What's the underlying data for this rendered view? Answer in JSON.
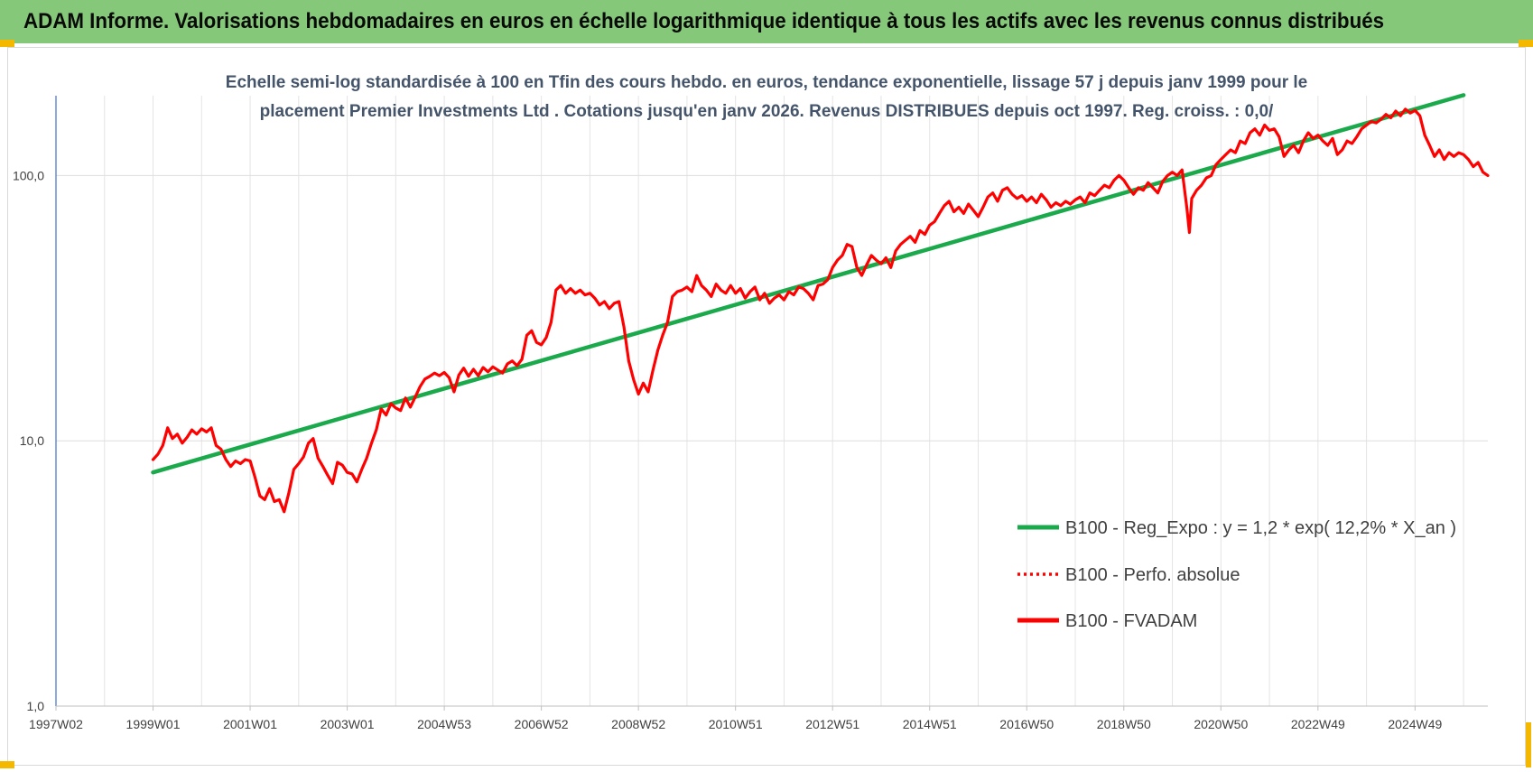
{
  "header": {
    "title": "ADAM Informe. Valorisations hebdomadaires en euros en échelle logarithmique identique à tous les actifs avec les revenus connus distribués"
  },
  "chart_data": {
    "type": "line",
    "subtitle_lines": [
      "Echelle semi-log standardisée à 100 en Tfin des cours hebdo. en euros, tendance exponentielle, lissage 57 j depuis janv 1999 pour le",
      "placement Premier Investments Ltd . Cotations jusqu'en janv 2026. Revenus DISTRIBUES depuis oct 1997. Reg. croiss. : 0,0/"
    ],
    "y_scale": "log",
    "ylim": [
      1,
      200
    ],
    "y_ticks": [
      {
        "value": 1,
        "label": "1,0"
      },
      {
        "value": 10,
        "label": "10,0"
      },
      {
        "value": 100,
        "label": "100,0"
      }
    ],
    "xlim": [
      1997.0,
      2026.0
    ],
    "x_ticks": [
      {
        "value": 1997.0,
        "label": "1997W02"
      },
      {
        "value": 1999.0,
        "label": "1999W01"
      },
      {
        "value": 2001.0,
        "label": "2001W01"
      },
      {
        "value": 2003.0,
        "label": "2003W01"
      },
      {
        "value": 2005.0,
        "label": "2004W53"
      },
      {
        "value": 2007.0,
        "label": "2006W52"
      },
      {
        "value": 2009.0,
        "label": "2008W52"
      },
      {
        "value": 2011.0,
        "label": "2010W51"
      },
      {
        "value": 2013.0,
        "label": "2012W51"
      },
      {
        "value": 2015.0,
        "label": "2014W51"
      },
      {
        "value": 2017.0,
        "label": "2016W50"
      },
      {
        "value": 2019.0,
        "label": "2018W50"
      },
      {
        "value": 2021.0,
        "label": "2020W50"
      },
      {
        "value": 2023.0,
        "label": "2022W49"
      },
      {
        "value": 2025.0,
        "label": "2024W49"
      }
    ],
    "grid": true,
    "legend_position": "right-middle",
    "series": [
      {
        "name": "B100 - Reg_Expo : y = 1,2 * exp( 12,2% *  X_an )",
        "color": "#1aaa4b",
        "style": "solid",
        "points": [
          [
            1999.0,
            7.6
          ],
          [
            2026.0,
            201.0
          ]
        ]
      },
      {
        "name": "B100 - Perfo. absolue",
        "color": "#ff0000",
        "style": "dotted",
        "points": []
      },
      {
        "name": "B100 - FVADAM",
        "color": "#ff0000",
        "style": "solid",
        "points": [
          [
            1999.0,
            8.5
          ],
          [
            1999.1,
            8.9
          ],
          [
            1999.2,
            9.6
          ],
          [
            1999.3,
            11.2
          ],
          [
            1999.4,
            10.2
          ],
          [
            1999.5,
            10.6
          ],
          [
            1999.6,
            9.8
          ],
          [
            1999.7,
            10.3
          ],
          [
            1999.8,
            11.0
          ],
          [
            1999.9,
            10.6
          ],
          [
            2000.0,
            11.1
          ],
          [
            2000.1,
            10.8
          ],
          [
            2000.2,
            11.2
          ],
          [
            2000.3,
            9.6
          ],
          [
            2000.4,
            9.3
          ],
          [
            2000.5,
            8.5
          ],
          [
            2000.6,
            8.0
          ],
          [
            2000.7,
            8.4
          ],
          [
            2000.8,
            8.2
          ],
          [
            2000.9,
            8.5
          ],
          [
            2001.0,
            8.4
          ],
          [
            2001.1,
            7.3
          ],
          [
            2001.2,
            6.2
          ],
          [
            2001.3,
            6.0
          ],
          [
            2001.4,
            6.6
          ],
          [
            2001.5,
            5.9
          ],
          [
            2001.6,
            6.0
          ],
          [
            2001.7,
            5.4
          ],
          [
            2001.8,
            6.4
          ],
          [
            2001.9,
            7.8
          ],
          [
            2002.0,
            8.2
          ],
          [
            2002.1,
            8.7
          ],
          [
            2002.2,
            9.8
          ],
          [
            2002.3,
            10.2
          ],
          [
            2002.4,
            8.6
          ],
          [
            2002.5,
            8.0
          ],
          [
            2002.6,
            7.4
          ],
          [
            2002.7,
            6.9
          ],
          [
            2002.8,
            8.3
          ],
          [
            2002.9,
            8.1
          ],
          [
            2003.0,
            7.6
          ],
          [
            2003.1,
            7.5
          ],
          [
            2003.2,
            7.0
          ],
          [
            2003.3,
            7.8
          ],
          [
            2003.4,
            8.6
          ],
          [
            2003.5,
            9.8
          ],
          [
            2003.6,
            11.0
          ],
          [
            2003.7,
            13.2
          ],
          [
            2003.8,
            12.5
          ],
          [
            2003.9,
            13.8
          ],
          [
            2004.0,
            13.3
          ],
          [
            2004.1,
            13.0
          ],
          [
            2004.2,
            14.5
          ],
          [
            2004.3,
            13.4
          ],
          [
            2004.4,
            14.6
          ],
          [
            2004.5,
            16.0
          ],
          [
            2004.6,
            17.1
          ],
          [
            2004.7,
            17.5
          ],
          [
            2004.8,
            18.0
          ],
          [
            2004.9,
            17.6
          ],
          [
            2005.0,
            18.1
          ],
          [
            2005.1,
            17.3
          ],
          [
            2005.2,
            15.3
          ],
          [
            2005.3,
            17.7
          ],
          [
            2005.4,
            18.8
          ],
          [
            2005.5,
            17.5
          ],
          [
            2005.6,
            18.6
          ],
          [
            2005.7,
            17.6
          ],
          [
            2005.8,
            18.9
          ],
          [
            2005.9,
            18.2
          ],
          [
            2006.0,
            19.0
          ],
          [
            2006.1,
            18.5
          ],
          [
            2006.2,
            18.0
          ],
          [
            2006.3,
            19.5
          ],
          [
            2006.4,
            20.0
          ],
          [
            2006.5,
            19.2
          ],
          [
            2006.6,
            20.3
          ],
          [
            2006.7,
            25.0
          ],
          [
            2006.8,
            26.0
          ],
          [
            2006.9,
            23.5
          ],
          [
            2007.0,
            23.0
          ],
          [
            2007.1,
            24.5
          ],
          [
            2007.2,
            28.0
          ],
          [
            2007.3,
            37.0
          ],
          [
            2007.4,
            38.5
          ],
          [
            2007.5,
            36.0
          ],
          [
            2007.6,
            37.5
          ],
          [
            2007.7,
            36.0
          ],
          [
            2007.8,
            37.0
          ],
          [
            2007.9,
            35.5
          ],
          [
            2008.0,
            36.0
          ],
          [
            2008.1,
            34.5
          ],
          [
            2008.2,
            32.5
          ],
          [
            2008.3,
            33.5
          ],
          [
            2008.4,
            31.5
          ],
          [
            2008.5,
            33.0
          ],
          [
            2008.6,
            33.5
          ],
          [
            2008.7,
            27.0
          ],
          [
            2008.8,
            20.0
          ],
          [
            2008.9,
            17.0
          ],
          [
            2009.0,
            15.0
          ],
          [
            2009.1,
            16.5
          ],
          [
            2009.2,
            15.3
          ],
          [
            2009.3,
            18.5
          ],
          [
            2009.4,
            22.0
          ],
          [
            2009.5,
            25.0
          ],
          [
            2009.6,
            28.0
          ],
          [
            2009.7,
            35.0
          ],
          [
            2009.8,
            36.5
          ],
          [
            2009.9,
            37.0
          ],
          [
            2010.0,
            38.0
          ],
          [
            2010.1,
            36.5
          ],
          [
            2010.2,
            42.0
          ],
          [
            2010.3,
            38.5
          ],
          [
            2010.4,
            37.0
          ],
          [
            2010.5,
            35.0
          ],
          [
            2010.6,
            39.0
          ],
          [
            2010.7,
            37.0
          ],
          [
            2010.8,
            36.0
          ],
          [
            2010.9,
            38.5
          ],
          [
            2011.0,
            36.0
          ],
          [
            2011.1,
            37.5
          ],
          [
            2011.2,
            34.5
          ],
          [
            2011.3,
            36.5
          ],
          [
            2011.4,
            38.0
          ],
          [
            2011.5,
            34.0
          ],
          [
            2011.6,
            36.0
          ],
          [
            2011.7,
            33.0
          ],
          [
            2011.8,
            34.5
          ],
          [
            2011.9,
            35.5
          ],
          [
            2012.0,
            34.0
          ],
          [
            2012.1,
            36.5
          ],
          [
            2012.2,
            35.5
          ],
          [
            2012.3,
            38.0
          ],
          [
            2012.4,
            37.5
          ],
          [
            2012.5,
            36.0
          ],
          [
            2012.6,
            34.0
          ],
          [
            2012.7,
            38.5
          ],
          [
            2012.8,
            39.0
          ],
          [
            2012.9,
            40.5
          ],
          [
            2013.0,
            45.0
          ],
          [
            2013.1,
            48.0
          ],
          [
            2013.2,
            50.0
          ],
          [
            2013.3,
            55.0
          ],
          [
            2013.4,
            54.0
          ],
          [
            2013.5,
            45.0
          ],
          [
            2013.6,
            42.0
          ],
          [
            2013.7,
            46.0
          ],
          [
            2013.8,
            50.0
          ],
          [
            2013.9,
            48.0
          ],
          [
            2014.0,
            46.5
          ],
          [
            2014.1,
            49.0
          ],
          [
            2014.2,
            45.0
          ],
          [
            2014.3,
            52.0
          ],
          [
            2014.4,
            55.0
          ],
          [
            2014.5,
            57.0
          ],
          [
            2014.6,
            59.0
          ],
          [
            2014.7,
            56.0
          ],
          [
            2014.8,
            62.0
          ],
          [
            2014.9,
            60.0
          ],
          [
            2015.0,
            65.0
          ],
          [
            2015.1,
            67.0
          ],
          [
            2015.2,
            72.0
          ],
          [
            2015.3,
            77.0
          ],
          [
            2015.4,
            80.0
          ],
          [
            2015.5,
            73.0
          ],
          [
            2015.6,
            76.0
          ],
          [
            2015.7,
            72.0
          ],
          [
            2015.8,
            78.0
          ],
          [
            2015.9,
            74.0
          ],
          [
            2016.0,
            70.0
          ],
          [
            2016.1,
            76.0
          ],
          [
            2016.2,
            83.0
          ],
          [
            2016.3,
            86.0
          ],
          [
            2016.4,
            80.0
          ],
          [
            2016.5,
            88.0
          ],
          [
            2016.6,
            90.0
          ],
          [
            2016.7,
            85.0
          ],
          [
            2016.8,
            82.0
          ],
          [
            2016.9,
            84.0
          ],
          [
            2017.0,
            80.0
          ],
          [
            2017.1,
            83.0
          ],
          [
            2017.2,
            79.0
          ],
          [
            2017.3,
            85.0
          ],
          [
            2017.4,
            81.0
          ],
          [
            2017.5,
            76.0
          ],
          [
            2017.6,
            79.0
          ],
          [
            2017.7,
            77.0
          ],
          [
            2017.8,
            80.0
          ],
          [
            2017.9,
            78.0
          ],
          [
            2018.0,
            81.0
          ],
          [
            2018.1,
            83.0
          ],
          [
            2018.2,
            79.0
          ],
          [
            2018.3,
            86.0
          ],
          [
            2018.4,
            84.0
          ],
          [
            2018.5,
            88.0
          ],
          [
            2018.6,
            92.0
          ],
          [
            2018.7,
            90.0
          ],
          [
            2018.8,
            96.0
          ],
          [
            2018.9,
            100.0
          ],
          [
            2019.0,
            96.0
          ],
          [
            2019.1,
            90.0
          ],
          [
            2019.2,
            85.0
          ],
          [
            2019.3,
            90.0
          ],
          [
            2019.4,
            88.0
          ],
          [
            2019.5,
            94.0
          ],
          [
            2019.6,
            90.0
          ],
          [
            2019.7,
            86.0
          ],
          [
            2019.8,
            95.0
          ],
          [
            2019.9,
            100.0
          ],
          [
            2020.0,
            103.0
          ],
          [
            2020.1,
            100.0
          ],
          [
            2020.2,
            105.0
          ],
          [
            2020.3,
            75.0
          ],
          [
            2020.35,
            61.0
          ],
          [
            2020.4,
            82.0
          ],
          [
            2020.5,
            88.0
          ],
          [
            2020.6,
            92.0
          ],
          [
            2020.7,
            98.0
          ],
          [
            2020.8,
            100.0
          ],
          [
            2020.9,
            110.0
          ],
          [
            2021.0,
            115.0
          ],
          [
            2021.1,
            120.0
          ],
          [
            2021.2,
            125.0
          ],
          [
            2021.3,
            122.0
          ],
          [
            2021.4,
            135.0
          ],
          [
            2021.5,
            132.0
          ],
          [
            2021.6,
            145.0
          ],
          [
            2021.7,
            150.0
          ],
          [
            2021.8,
            142.0
          ],
          [
            2021.9,
            155.0
          ],
          [
            2022.0,
            148.0
          ],
          [
            2022.1,
            150.0
          ],
          [
            2022.2,
            140.0
          ],
          [
            2022.3,
            118.0
          ],
          [
            2022.4,
            125.0
          ],
          [
            2022.5,
            130.0
          ],
          [
            2022.6,
            122.0
          ],
          [
            2022.7,
            135.0
          ],
          [
            2022.8,
            145.0
          ],
          [
            2022.9,
            138.0
          ],
          [
            2023.0,
            142.0
          ],
          [
            2023.1,
            135.0
          ],
          [
            2023.2,
            130.0
          ],
          [
            2023.3,
            138.0
          ],
          [
            2023.4,
            120.0
          ],
          [
            2023.5,
            125.0
          ],
          [
            2023.6,
            135.0
          ],
          [
            2023.7,
            132.0
          ],
          [
            2023.8,
            140.0
          ],
          [
            2023.9,
            150.0
          ],
          [
            2024.0,
            155.0
          ],
          [
            2024.1,
            160.0
          ],
          [
            2024.2,
            158.0
          ],
          [
            2024.3,
            163.0
          ],
          [
            2024.4,
            170.0
          ],
          [
            2024.5,
            165.0
          ],
          [
            2024.6,
            175.0
          ],
          [
            2024.7,
            168.0
          ],
          [
            2024.8,
            178.0
          ],
          [
            2024.9,
            172.0
          ],
          [
            2025.0,
            176.0
          ],
          [
            2025.1,
            168.0
          ],
          [
            2025.2,
            142.0
          ],
          [
            2025.3,
            130.0
          ],
          [
            2025.4,
            118.0
          ],
          [
            2025.5,
            125.0
          ],
          [
            2025.6,
            115.0
          ],
          [
            2025.7,
            122.0
          ],
          [
            2025.8,
            118.0
          ],
          [
            2025.9,
            122.0
          ],
          [
            2026.0,
            120.0
          ],
          [
            2026.1,
            115.0
          ],
          [
            2026.2,
            108.0
          ],
          [
            2026.3,
            112.0
          ],
          [
            2026.4,
            103.0
          ],
          [
            2026.5,
            100.0
          ]
        ]
      }
    ]
  }
}
